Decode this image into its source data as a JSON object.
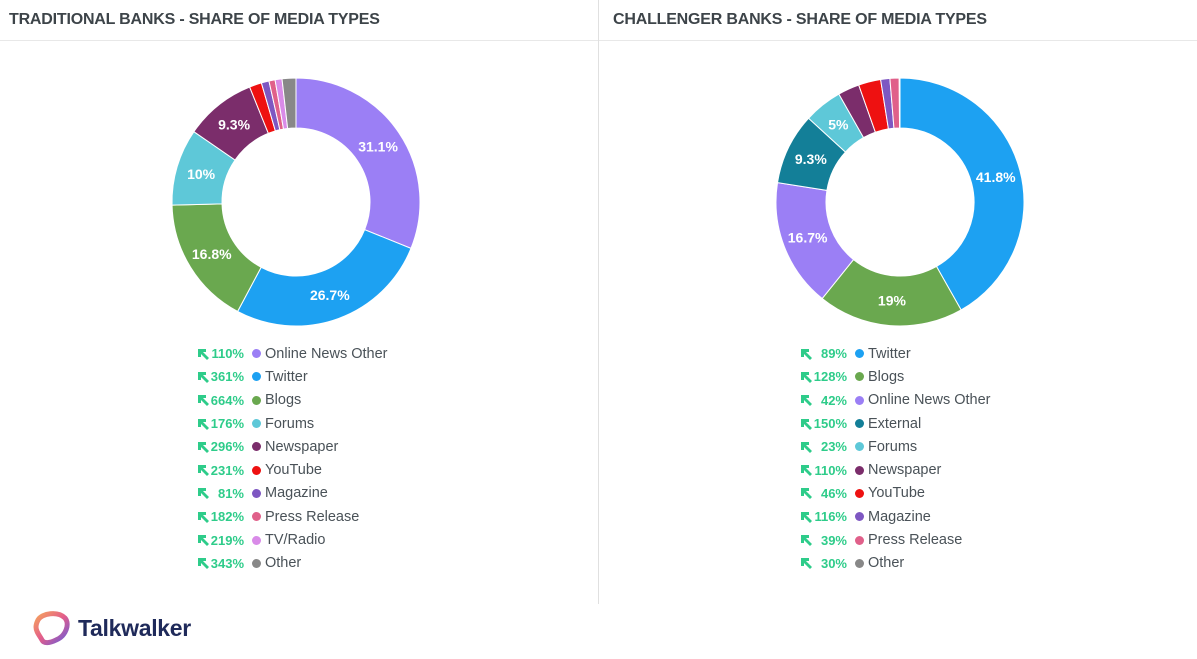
{
  "panels": [
    {
      "title": "TRADITIONAL BANKS - SHARE OF MEDIA TYPES",
      "legend": [
        {
          "change": "110%",
          "label": "Online News Other",
          "color": "#9b7ff5"
        },
        {
          "change": "361%",
          "label": "Twitter",
          "color": "#1da1f2"
        },
        {
          "change": "664%",
          "label": "Blogs",
          "color": "#6aa84f"
        },
        {
          "change": "176%",
          "label": "Forums",
          "color": "#5ec8d8"
        },
        {
          "change": "296%",
          "label": "Newspaper",
          "color": "#7b2d6b"
        },
        {
          "change": "231%",
          "label": "YouTube",
          "color": "#ee1111"
        },
        {
          "change": "81%",
          "label": "Magazine",
          "color": "#7e57c2"
        },
        {
          "change": "182%",
          "label": "Press Release",
          "color": "#e0608a"
        },
        {
          "change": "219%",
          "label": "TV/Radio",
          "color": "#d98be8"
        },
        {
          "change": "343%",
          "label": "Other",
          "color": "#888888"
        }
      ]
    },
    {
      "title": "CHALLENGER BANKS - SHARE OF MEDIA TYPES",
      "legend": [
        {
          "change": "89%",
          "label": "Twitter",
          "color": "#1da1f2"
        },
        {
          "change": "128%",
          "label": "Blogs",
          "color": "#6aa84f"
        },
        {
          "change": "42%",
          "label": "Online News Other",
          "color": "#9b7ff5"
        },
        {
          "change": "150%",
          "label": "External",
          "color": "#137f98"
        },
        {
          "change": "23%",
          "label": "Forums",
          "color": "#5ec8d8"
        },
        {
          "change": "110%",
          "label": "Newspaper",
          "color": "#7b2d6b"
        },
        {
          "change": "46%",
          "label": "YouTube",
          "color": "#ee1111"
        },
        {
          "change": "116%",
          "label": "Magazine",
          "color": "#7e57c2"
        },
        {
          "change": "39%",
          "label": "Press Release",
          "color": "#e0608a"
        },
        {
          "change": "30%",
          "label": "Other",
          "color": "#888888"
        }
      ]
    }
  ],
  "footer": {
    "brand": "Talkwalker"
  },
  "trend_icon": "arrow-up-left-icon",
  "trend_color": "#2ecc8a",
  "chart_data": [
    {
      "type": "pie",
      "title": "TRADITIONAL BANKS - SHARE OF MEDIA TYPES",
      "donut": true,
      "categories": [
        "Online News Other",
        "Twitter",
        "Blogs",
        "Forums",
        "Newspaper",
        "YouTube",
        "Magazine",
        "Press Release",
        "TV/Radio",
        "Other"
      ],
      "values": [
        31.1,
        26.7,
        16.8,
        10,
        9.3,
        1.6,
        1.0,
        0.8,
        0.9,
        1.8
      ],
      "colors": [
        "#9b7ff5",
        "#1da1f2",
        "#6aa84f",
        "#5ec8d8",
        "#7b2d6b",
        "#ee1111",
        "#7e57c2",
        "#e0608a",
        "#d98be8",
        "#888888"
      ],
      "data_labels": [
        "31.1%",
        "26.7%",
        "16.8%",
        "10%",
        "9.3%",
        "",
        "",
        "",
        "",
        ""
      ],
      "legend_changes": [
        "110%",
        "361%",
        "664%",
        "176%",
        "296%",
        "231%",
        "81%",
        "182%",
        "219%",
        "343%"
      ],
      "legend_position": "bottom"
    },
    {
      "type": "pie",
      "title": "CHALLENGER BANKS - SHARE OF MEDIA TYPES",
      "donut": true,
      "categories": [
        "Twitter",
        "Blogs",
        "Online News Other",
        "External",
        "Forums",
        "Newspaper",
        "YouTube",
        "Magazine",
        "Press Release",
        "Other"
      ],
      "values": [
        41.8,
        19,
        16.7,
        9.3,
        5,
        2.8,
        2.9,
        1.2,
        1.2,
        0.1
      ],
      "colors": [
        "#1da1f2",
        "#6aa84f",
        "#9b7ff5",
        "#137f98",
        "#5ec8d8",
        "#7b2d6b",
        "#ee1111",
        "#7e57c2",
        "#e0608a",
        "#888888"
      ],
      "data_labels": [
        "41.8%",
        "19%",
        "16.7%",
        "9.3%",
        "5%",
        "",
        "",
        "",
        "",
        ""
      ],
      "legend_changes": [
        "89%",
        "128%",
        "42%",
        "150%",
        "23%",
        "110%",
        "46%",
        "116%",
        "39%",
        "30%"
      ],
      "legend_position": "bottom"
    }
  ]
}
